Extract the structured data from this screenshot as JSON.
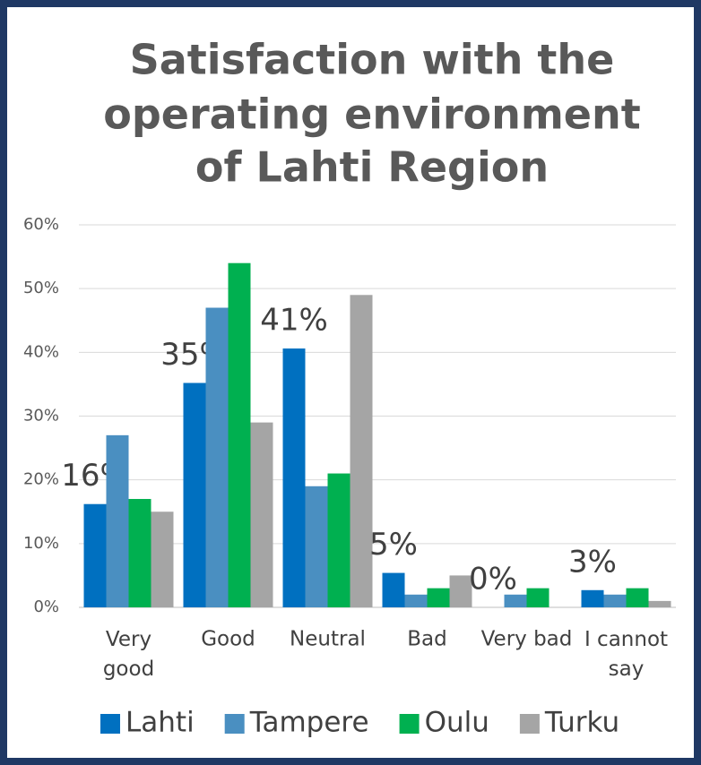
{
  "chart_data": {
    "type": "bar",
    "title": [
      "Satisfaction with the",
      "operating environment",
      "of Lahti Region"
    ],
    "categories": [
      "Very good",
      "Good",
      "Neutral",
      "Bad",
      "Very bad",
      "I cannot say"
    ],
    "series": [
      {
        "name": "Lahti",
        "color": "#0070c0",
        "values": [
          16.2,
          35.2,
          40.6,
          5.4,
          0,
          2.7
        ],
        "value_labels": [
          "16%",
          "35%",
          "41%",
          "5%",
          "0%",
          "3%"
        ]
      },
      {
        "name": "Tampere",
        "color": "#4a8fc1",
        "values": [
          27,
          47,
          19,
          2,
          2,
          2
        ]
      },
      {
        "name": "Oulu",
        "color": "#00b050",
        "values": [
          17,
          54,
          21,
          3,
          3,
          3
        ]
      },
      {
        "name": "Turku",
        "color": "#a5a5a5",
        "values": [
          15,
          29,
          49,
          5,
          0,
          1
        ]
      }
    ],
    "ylim": [
      0,
      60
    ],
    "yticks": [
      {
        "value": 0,
        "label": "0%"
      },
      {
        "value": 10,
        "label": "10%"
      },
      {
        "value": 20,
        "label": "20%"
      },
      {
        "value": 30,
        "label": "30%"
      },
      {
        "value": 40,
        "label": "40%"
      },
      {
        "value": 50,
        "label": "50%"
      },
      {
        "value": 60,
        "label": "60%"
      }
    ],
    "grid": true,
    "legend": "bottom"
  }
}
